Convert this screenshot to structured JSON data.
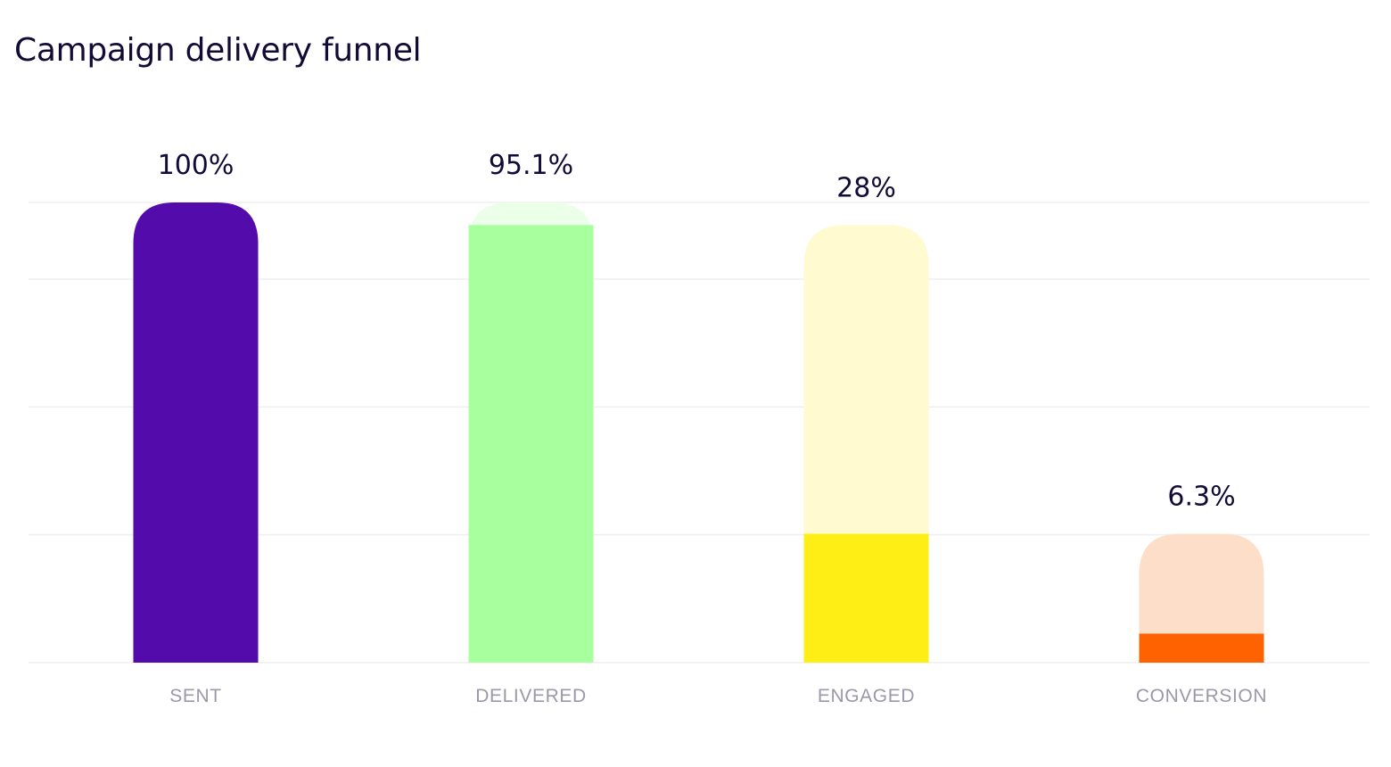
{
  "title": "Campaign delivery funnel",
  "chart_data": {
    "type": "bar",
    "categories": [
      "SENT",
      "DELIVERED",
      "ENGAGED",
      "CONVERSION"
    ],
    "values": [
      100,
      95.1,
      28,
      6.3
    ],
    "value_labels": [
      "100%",
      "95.1%",
      "28%",
      "6.3%"
    ],
    "ylim": [
      0,
      100
    ],
    "grid": true,
    "colors": {
      "strong": [
        "#540bab",
        "#a8ff9e",
        "#ffee16",
        "#ff6200"
      ],
      "faded": [
        "#540bab",
        "#ecffe9",
        "#fffad0",
        "#fddfc9"
      ],
      "gridline": "#efefef",
      "label": "#9a99a8",
      "value_label": "#130a35"
    }
  }
}
